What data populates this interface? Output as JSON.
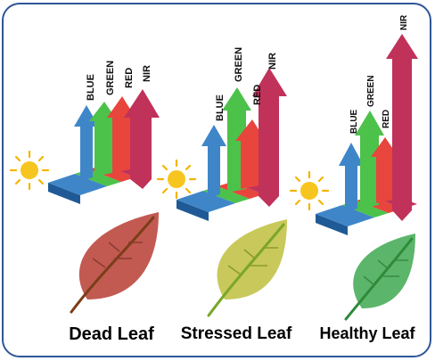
{
  "bands": [
    "BLUE",
    "GREEN",
    "RED",
    "NIR"
  ],
  "band_colors": {
    "BLUE": "#3f86c9",
    "GREEN": "#4cc24a",
    "RED": "#e8453c",
    "NIR": "#c0325a"
  },
  "panels": [
    {
      "title": "Dead Leaf",
      "leaf_color": "#c25a52",
      "stem_color": "#7a3e18",
      "reflectance": {
        "BLUE": "moderate",
        "GREEN": "moderate",
        "RED": "moderate",
        "NIR": "moderate"
      }
    },
    {
      "title": "Stressed Leaf",
      "leaf_color": "#c8c95a",
      "stem_color": "#7aa62a",
      "reflectance": {
        "BLUE": "moderate",
        "GREEN": "high",
        "RED": "moderate",
        "NIR": "high"
      }
    },
    {
      "title": "Healthy Leaf",
      "leaf_color": "#5bb56a",
      "stem_color": "#2e8a3a",
      "reflectance": {
        "BLUE": "low",
        "GREEN": "moderate",
        "RED": "low",
        "NIR": "very high"
      }
    }
  ]
}
